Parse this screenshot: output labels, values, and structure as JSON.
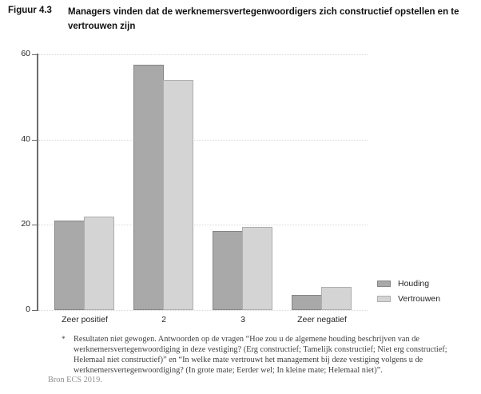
{
  "figure": {
    "label": "Figuur 4.3",
    "title_line1": "Managers vinden dat de werknemersvertegenwoordigers zich constructief opstellen en te",
    "title_line2": "vertrouwen zijn"
  },
  "chart_data": {
    "type": "bar",
    "categories": [
      "Zeer positief",
      "2",
      "3",
      "Zeer negatief"
    ],
    "series": [
      {
        "name": "Houding",
        "values": [
          21,
          57.5,
          18.5,
          3.5
        ],
        "fill": "#a9a9a9",
        "border": "#858585"
      },
      {
        "name": "Vertrouwen",
        "values": [
          22,
          54,
          19.5,
          5.5
        ],
        "fill": "#d4d4d4",
        "border": "#aeaeae"
      }
    ],
    "title": "Managers vinden dat de werknemersvertegenwoordigers zich constructief opstellen en te vertrouwen zijn",
    "xlabel": "",
    "ylabel": "",
    "ylim": [
      0,
      60
    ],
    "yticks": [
      0,
      20,
      40,
      60
    ],
    "grid": "horizontal-dotted",
    "legend_position": "right-bottom",
    "gridline_color": "#d9d9d9",
    "axis_color": "#6b6b6b"
  },
  "footnote": {
    "marker": "*",
    "text": "Resultaten niet gewogen. Antwoorden op de vragen “Hoe zou u de algemene houding beschrijven van de werknemersvertegenwoordiging in deze vestiging? (Erg constructief; Tamelijk constructief; Niet erg constructief; Helemaal niet constructief)” en “In welke mate vertrouwt het management bij deze vestiging volgens u de werknemersvertegenwoordiging? (In grote mate; Eerder wel; In kleine mate; Helemaal niet)”.",
    "source": "Bron ECS 2019."
  }
}
